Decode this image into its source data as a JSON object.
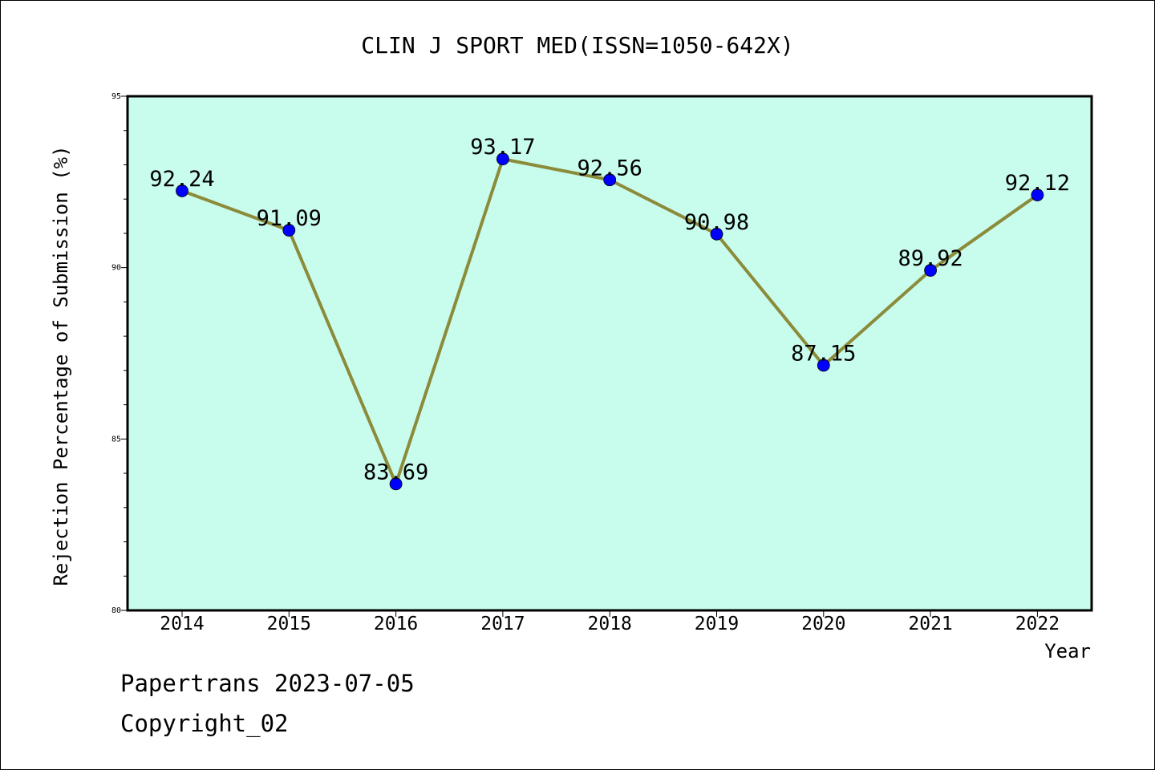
{
  "chart_data": {
    "type": "line",
    "title": "CLIN J SPORT MED(ISSN=1050-642X)",
    "xlabel": "Year",
    "ylabel": "Rejection Percentage of Submission (%)",
    "categories": [
      "2014",
      "2015",
      "2016",
      "2017",
      "2018",
      "2019",
      "2020",
      "2021",
      "2022"
    ],
    "values": [
      92.24,
      91.09,
      83.69,
      93.17,
      92.56,
      90.98,
      87.15,
      89.92,
      92.12
    ],
    "data_labels": [
      "92.24",
      "91.09",
      "83.69",
      "93.17",
      "92.56",
      "90.98",
      "87.15",
      "89.92",
      "92.12"
    ],
    "ylim": [
      80,
      95
    ],
    "y_major_ticks": [
      "80",
      "85",
      "90",
      "95"
    ],
    "grid": false,
    "colors": {
      "plot_background": "#c8fcec",
      "line": "#8b8b3a",
      "marker": "#0000ff"
    }
  },
  "footer": {
    "line1": "Papertrans 2023-07-05",
    "line2": "Copyright_02"
  }
}
